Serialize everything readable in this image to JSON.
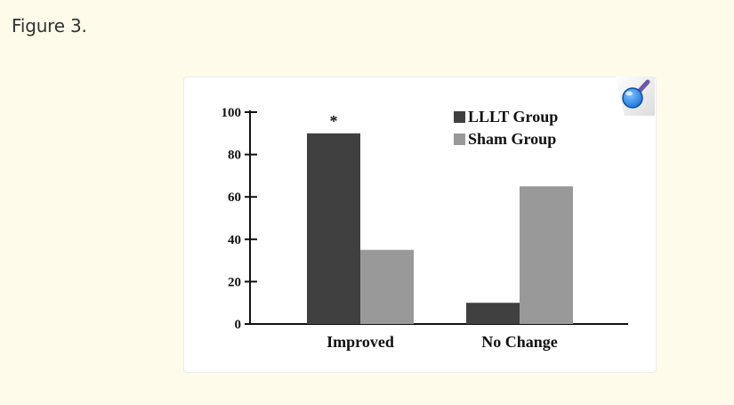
{
  "page": {
    "figure_label": "Figure 3."
  },
  "colors": {
    "background": "#fffbea",
    "card": "#ffffff",
    "series": [
      "#404040",
      "#999999"
    ],
    "badge": "#2a8cf0"
  },
  "icons": {
    "zoom": "magnifier-icon"
  },
  "chart_data": {
    "type": "bar",
    "categories": [
      "Improved",
      "No Change"
    ],
    "series": [
      {
        "name": "LLLT Group",
        "values": [
          90,
          10
        ]
      },
      {
        "name": "Sham Group",
        "values": [
          35,
          65
        ]
      }
    ],
    "ylim": [
      0,
      100
    ],
    "yticks": [
      0,
      20,
      40,
      60,
      80,
      100
    ],
    "legend_position": "top-right",
    "annotations": [
      {
        "text": "*",
        "category": "Improved",
        "series": "LLLT Group"
      }
    ],
    "grid": false
  }
}
